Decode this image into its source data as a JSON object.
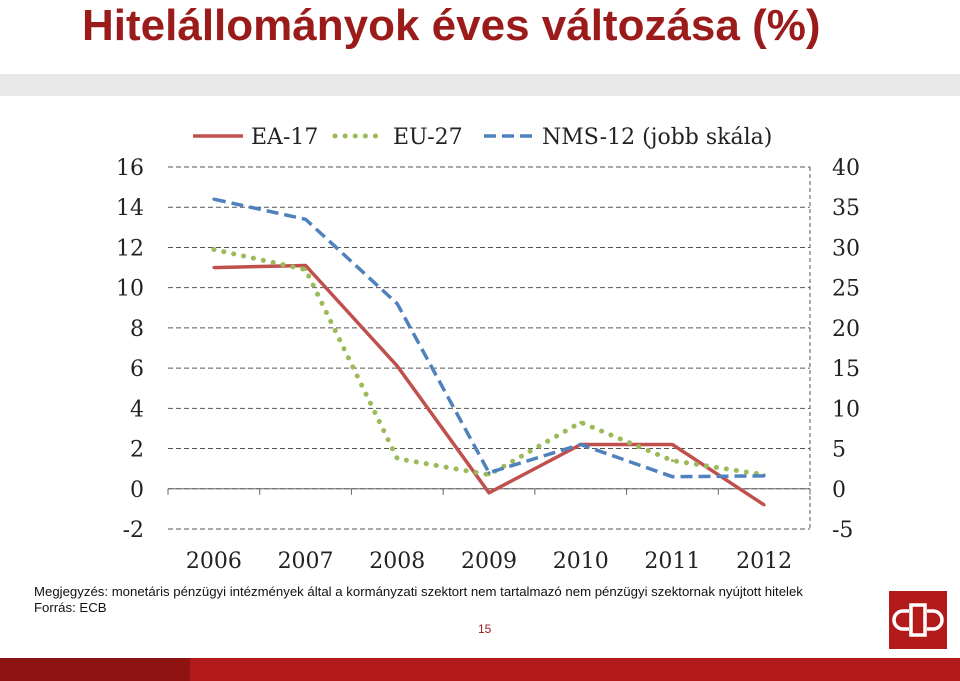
{
  "slide": {
    "title": "Hitelállományok éves változása (%)",
    "note": "Megjegyzés: monetáris pénzügyi intézmények által a kormányzati szektort nem tartalmazó nem pénzügyi szektornak nyújtott hitelek",
    "source": "Forrás: ECB",
    "page_number": "15"
  },
  "colors": {
    "title": "#9b1b1b",
    "ea17": "#c0504d",
    "eu27": "#9bbb59",
    "nms12": "#4f81bd",
    "footer": "#b31a1a"
  },
  "chart_data": {
    "type": "line",
    "title": "",
    "xlabel": "",
    "ylabel": "",
    "categories": [
      "2006",
      "2007",
      "2008",
      "2009",
      "2010",
      "2011",
      "2012"
    ],
    "y_left": {
      "range": [
        -2,
        16
      ],
      "ticks": [
        "-2",
        "0",
        "2",
        "4",
        "6",
        "8",
        "10",
        "12",
        "14",
        "16"
      ]
    },
    "y_right": {
      "range": [
        -5,
        40
      ],
      "ticks": [
        "-5",
        "0",
        "5",
        "10",
        "15",
        "20",
        "25",
        "30",
        "35",
        "40"
      ]
    },
    "grid": true,
    "legend_position": "top",
    "series": [
      {
        "name": "EA-17",
        "axis": "left",
        "style": "solid",
        "values": [
          11.0,
          11.1,
          6.1,
          -0.2,
          2.2,
          2.2,
          -0.8
        ]
      },
      {
        "name": "EU-27",
        "axis": "left",
        "style": "dotted",
        "values": [
          11.9,
          10.9,
          1.5,
          0.7,
          3.3,
          1.4,
          0.7
        ]
      },
      {
        "name": "NMS-12 (jobb skála)",
        "axis": "right",
        "style": "dashed",
        "values": [
          36.0,
          33.5,
          23.0,
          2.0,
          5.5,
          1.5,
          1.6
        ]
      }
    ]
  }
}
